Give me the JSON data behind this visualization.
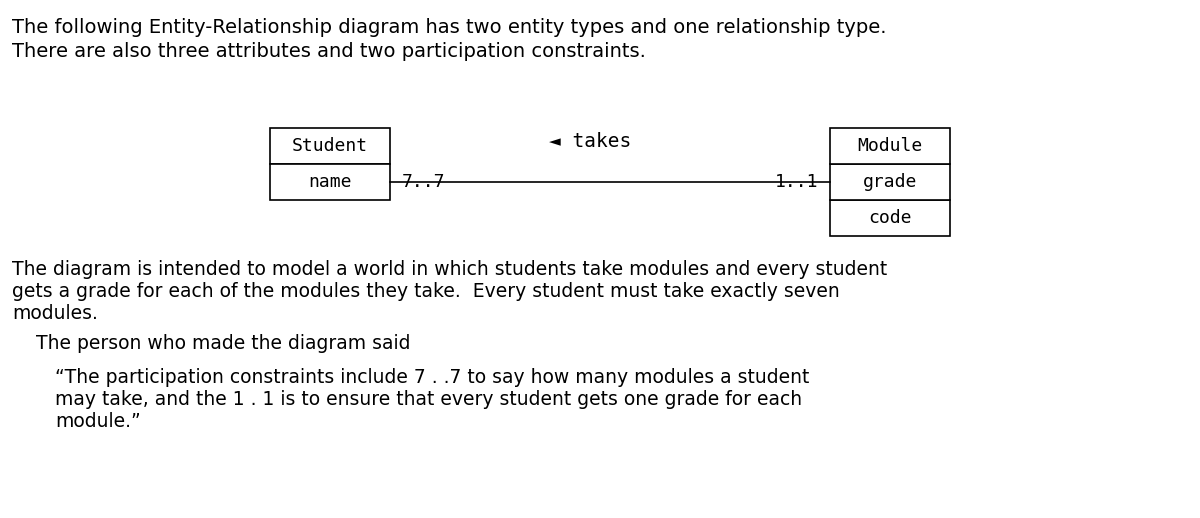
{
  "line1": "The following Entity-Relationship diagram has two entity types and one relationship type.",
  "line2": "There are also three attributes and two participation constraints.",
  "para1_lines": [
    "The diagram is intended to model a world in which students take modules and every student",
    "gets a grade for each of the modules they take.  Every student must take exactly seven",
    "modules."
  ],
  "said_line": "    The person who made the diagram said",
  "quote_lines": [
    "“The participation constraints include 7 . .7 to say how many modules a student",
    "may take, and the 1 . 1 is to ensure that every student gets one grade for each",
    "module.”"
  ],
  "student_entity": "Student",
  "student_attr": "name",
  "module_entity": "Module",
  "module_attrs": [
    "grade",
    "code"
  ],
  "relationship": "takes",
  "constraint_left": "7..7",
  "constraint_right": "1..1",
  "arrow_char": "◄",
  "bg_color": "#ffffff",
  "text_color": "#000000",
  "mono_font": "DejaVu Sans Mono",
  "body_font": "DejaVu Sans",
  "header_fontsize": 14,
  "body_fontsize": 13.5,
  "diagram_fontsize": 13
}
